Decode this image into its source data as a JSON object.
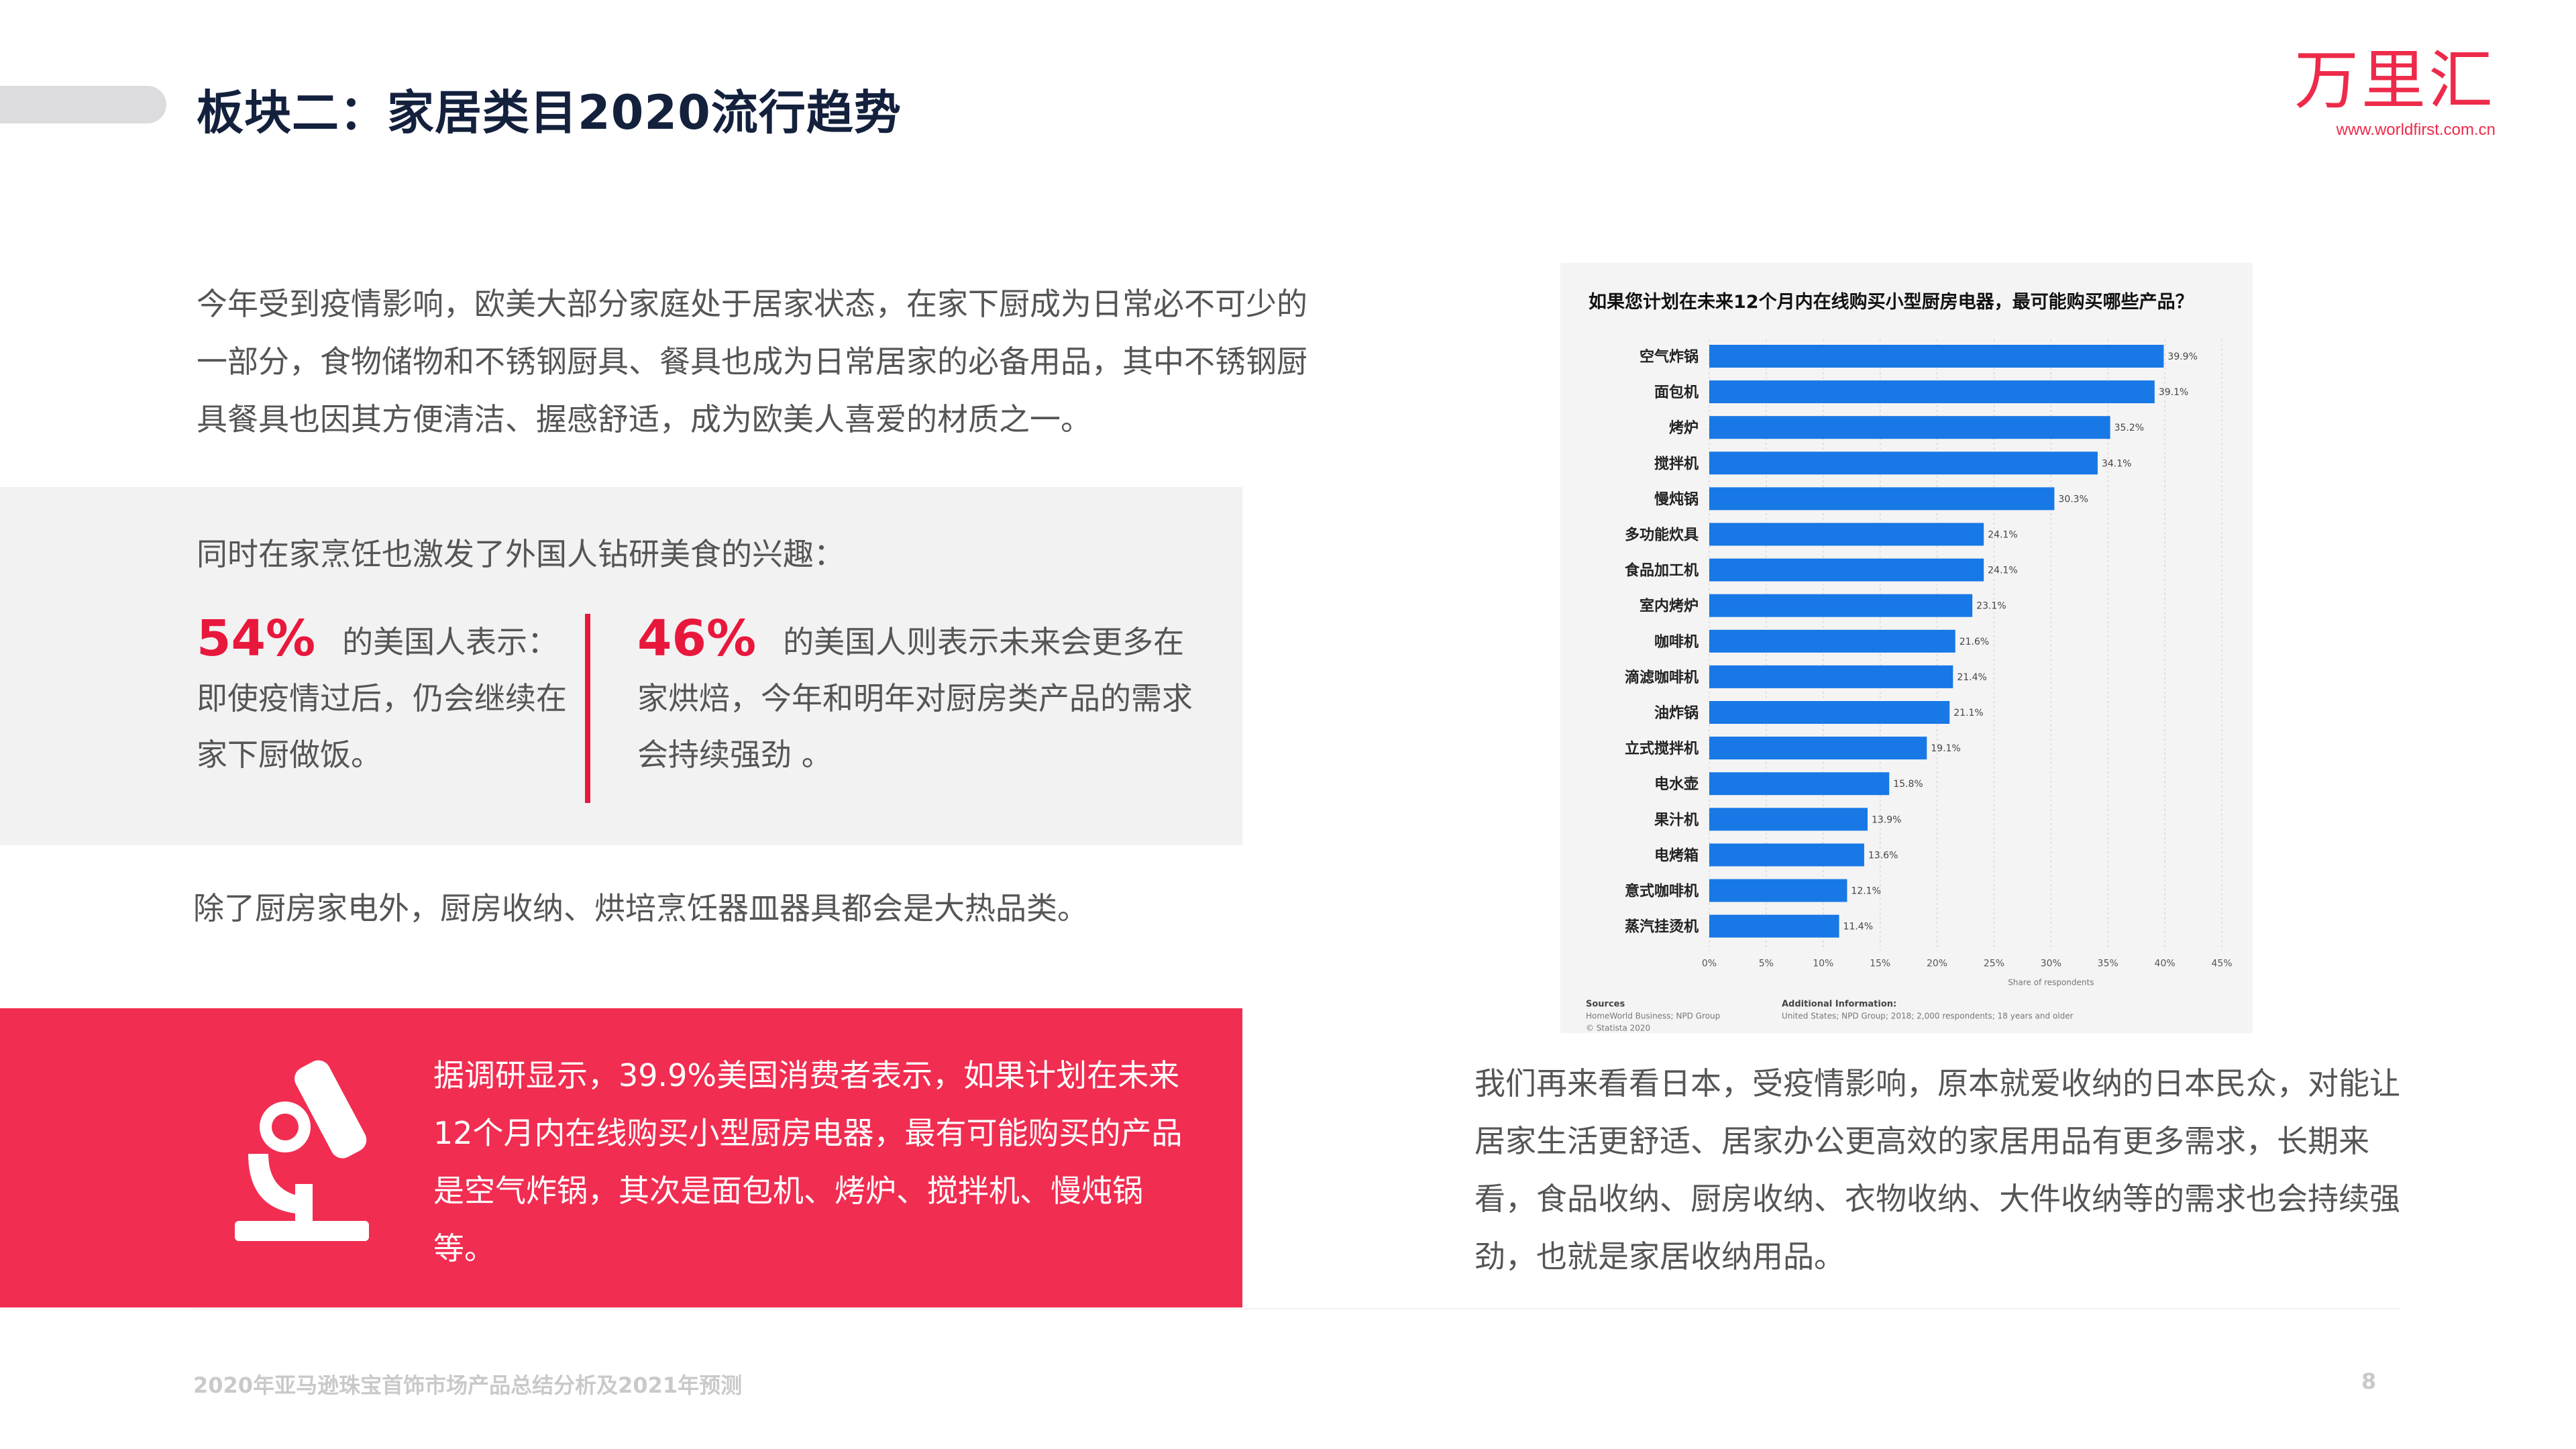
{
  "header": {
    "title": "板块二：家居类目2020流行趋势",
    "logo_text": "万里汇",
    "logo_url": "www.worldfirst.com.cn"
  },
  "intro": "今年受到疫情影响，欧美大部分家庭处于居家状态，在家下厨成为日常必不可少的一部分，食物储物和不锈钢厨具、餐具也成为日常居家的必备用品，其中不锈钢厨具餐具也因其方便清洁、握感舒适，成为欧美人喜爱的材质之一。",
  "gray_panel": {
    "lead": "同时在家烹饪也激发了外国人钻研美食的兴趣：",
    "stat1": {
      "pct": "54%",
      "text": "的美国人表示：即使疫情过后，仍会继续在家下厨做饭。"
    },
    "stat2": {
      "pct": "46%",
      "text": "的美国人则表示未来会更多在家烘焙，今年和明年对厨房类产品的需求会持续强劲 。"
    }
  },
  "after_panel": "除了厨房家电外，厨房收纳、烘培烹饪器皿器具都会是大热品类。",
  "red_panel": {
    "icon": "microscope-icon",
    "text": "据调研显示，39.9%美国消费者表示，如果计划在未来12个月内在线购买小型厨房电器，最有可能购买的产品是空气炸锅，其次是面包机、烤炉、搅拌机、慢炖锅等。"
  },
  "chart_data": {
    "type": "bar",
    "orientation": "horizontal",
    "title": "如果您计划在未来12个月内在线购买小型厨房电器，最可能购买哪些产品？",
    "categories": [
      "空气炸锅",
      "面包机",
      "烤炉",
      "搅拌机",
      "慢炖锅",
      "多功能炊具",
      "食品加工机",
      "室内烤炉",
      "咖啡机",
      "滴滤咖啡机",
      "油炸锅",
      "立式搅拌机",
      "电水壶",
      "果汁机",
      "电烤箱",
      "意式咖啡机",
      "蒸汽挂烫机"
    ],
    "values": [
      39.9,
      39.1,
      35.2,
      34.1,
      30.3,
      24.1,
      24.1,
      23.1,
      21.6,
      21.4,
      21.1,
      19.1,
      15.8,
      13.9,
      13.6,
      12.1,
      11.4
    ],
    "value_labels": [
      "39.9%",
      "39.1%",
      "35.2%",
      "34.1%",
      "30.3%",
      "24.1%",
      "24.1%",
      "23.1%",
      "21.6%",
      "21.4%",
      "21.1%",
      "19.1%",
      "15.8%",
      "13.9%",
      "13.6%",
      "12.1%",
      "11.4%"
    ],
    "xticks": [
      "0%",
      "5%",
      "10%",
      "15%",
      "20%",
      "25%",
      "30%",
      "35%",
      "40%",
      "45%"
    ],
    "xlim": [
      0,
      45
    ],
    "xlabel": "Share of respondents",
    "bar_color": "#1878e6",
    "grid": true,
    "sources_label": "Sources",
    "sources_text": "HomeWorld Business; NPD Group",
    "copyright": "© Statista 2020",
    "additional_label": "Additional Information:",
    "additional_text": "United States; NPD Group; 2018; 2,000 respondents; 18 years and older"
  },
  "right_text": "我们再来看看日本，受疫情影响，原本就爱收纳的日本民众，对能让居家生活更舒适、居家办公更高效的家居用品有更多需求，长期来看，食品收纳、厨房收纳、衣物收纳、大件收纳等的需求也会持续强劲，也就是家居收纳用品。",
  "footer": {
    "text": "2020年亚马逊珠宝首饰市场产品总结分析及2021年预测",
    "page": "8"
  },
  "colors": {
    "accent": "#e8183d",
    "red_panel": "#f12d51",
    "title": "#14213d"
  }
}
